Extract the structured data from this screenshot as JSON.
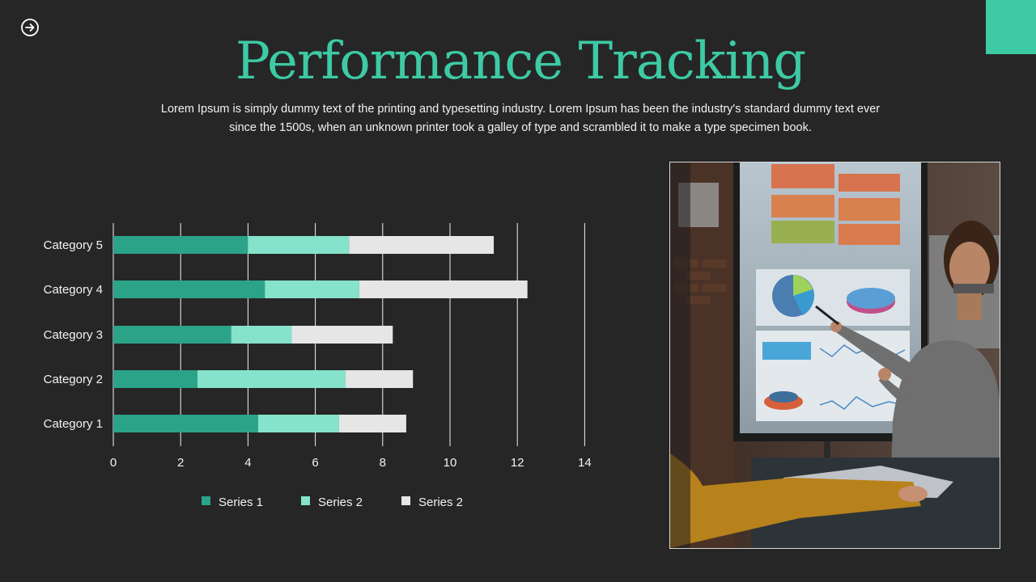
{
  "slide": {
    "title": "Performance Tracking",
    "subtitle": "Lorem Ipsum is simply dummy text of the printing and typesetting industry. Lorem Ipsum has been the industry's standard dummy text ever since the 1500s, when an unknown printer took a galley of type and scrambled it to make a type specimen book.",
    "accent_color": "#3dcaa5",
    "background_color": "#262626",
    "nav_icon": "arrow-right-circle-icon",
    "photo": "presenter-pointing-at-dashboard-screen"
  },
  "chart_data": {
    "type": "bar",
    "orientation": "horizontal",
    "stacked": true,
    "categories": [
      "Category 1",
      "Category 2",
      "Category 3",
      "Category 4",
      "Category 5"
    ],
    "series": [
      {
        "name": "Series 1",
        "values": [
          4.3,
          2.5,
          3.5,
          4.5,
          4.0
        ],
        "color": "#2ba388"
      },
      {
        "name": "Series 2",
        "values": [
          2.4,
          4.4,
          1.8,
          2.8,
          3.0
        ],
        "color": "#86e3cb"
      },
      {
        "name": "Series 2",
        "values": [
          2.0,
          2.0,
          3.0,
          5.0,
          4.3
        ],
        "color": "#e6e6e6"
      }
    ],
    "xticks": [
      "0",
      "2",
      "4",
      "6",
      "8",
      "10",
      "12",
      "14"
    ],
    "xlim": [
      0,
      14
    ],
    "grid": true,
    "legend_position": "bottom"
  }
}
